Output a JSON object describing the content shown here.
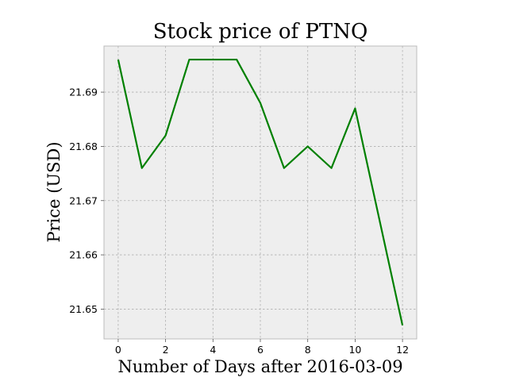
{
  "chart_data": {
    "type": "line",
    "title": "Stock price of PTNQ",
    "xlabel": "Number of Days after 2016-03-09",
    "ylabel": "Price (USD)",
    "xlim": [
      -0.6,
      12.6
    ],
    "ylim": [
      21.6445,
      21.6985
    ],
    "x_ticks": [
      0,
      2,
      4,
      6,
      8,
      10,
      12
    ],
    "y_ticks": [
      21.65,
      21.66,
      21.67,
      21.68,
      21.69
    ],
    "x_tick_labels": [
      "0",
      "2",
      "4",
      "6",
      "8",
      "10",
      "12"
    ],
    "y_tick_labels": [
      "21.65",
      "21.66",
      "21.67",
      "21.68",
      "21.69"
    ],
    "grid": true,
    "line_color": "#008000",
    "background_color": "#eeeeee",
    "series": [
      {
        "x": [
          0,
          1,
          2,
          3,
          4,
          5,
          6,
          7,
          8,
          9,
          10,
          11,
          12
        ],
        "values": [
          21.696,
          21.676,
          21.682,
          21.696,
          21.696,
          21.696,
          21.688,
          21.676,
          21.68,
          21.676,
          21.687,
          21.667,
          21.647
        ]
      }
    ]
  }
}
